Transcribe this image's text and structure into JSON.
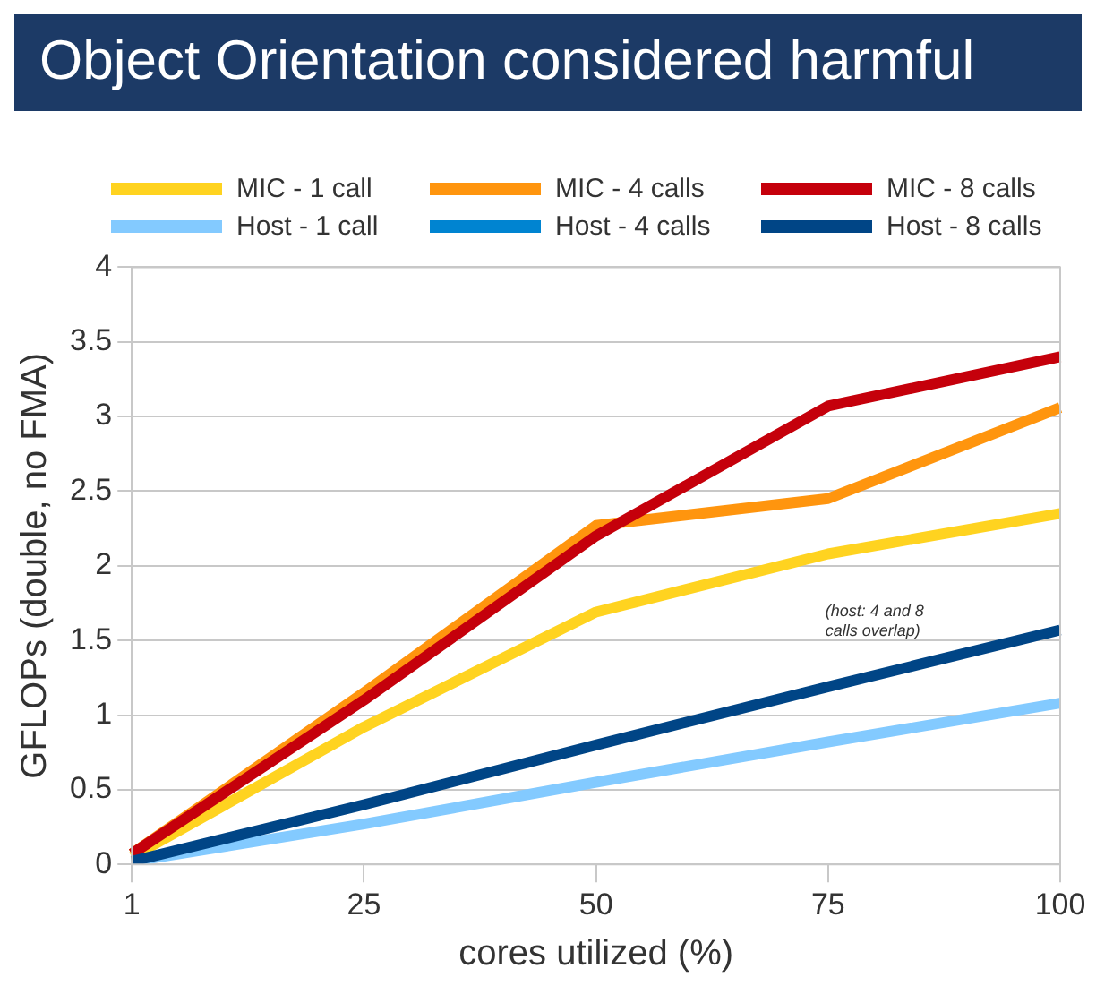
{
  "chart_data": {
    "type": "line",
    "title": "Object Orientation considered harmful",
    "xlabel": "cores utilized (%)",
    "ylabel": "GFLOPs (double, no FMA)",
    "categories": [
      "1",
      "25",
      "50",
      "75",
      "100"
    ],
    "series": [
      {
        "name": "MIC - 1 call",
        "color": "#ffd320",
        "values": [
          0.05,
          0.92,
          1.69,
          2.08,
          2.35
        ]
      },
      {
        "name": "MIC - 4 calls",
        "color": "#ff950e",
        "values": [
          0.07,
          1.15,
          2.27,
          2.45,
          3.06
        ]
      },
      {
        "name": "MIC - 8 calls",
        "color": "#c5000b",
        "values": [
          0.07,
          1.1,
          2.2,
          3.07,
          3.4
        ]
      },
      {
        "name": "Host - 1 call",
        "color": "#83caff",
        "values": [
          0.02,
          0.27,
          0.55,
          0.82,
          1.08
        ]
      },
      {
        "name": "Host - 4 calls",
        "color": "#0084d1",
        "values": [
          null,
          null,
          null,
          null,
          null
        ]
      },
      {
        "name": "Host - 8 calls",
        "color": "#004586",
        "values": [
          0.02,
          0.4,
          0.8,
          1.19,
          1.57
        ]
      }
    ],
    "ylim": [
      0,
      4
    ],
    "yticks": [
      0,
      0.5,
      1,
      1.5,
      2,
      2.5,
      3,
      3.5,
      4
    ],
    "grid": "y",
    "legend": "top",
    "marker": "none",
    "line_style": "solid",
    "annotations": [
      "(host: 4 and 8 calls overlap)"
    ]
  }
}
